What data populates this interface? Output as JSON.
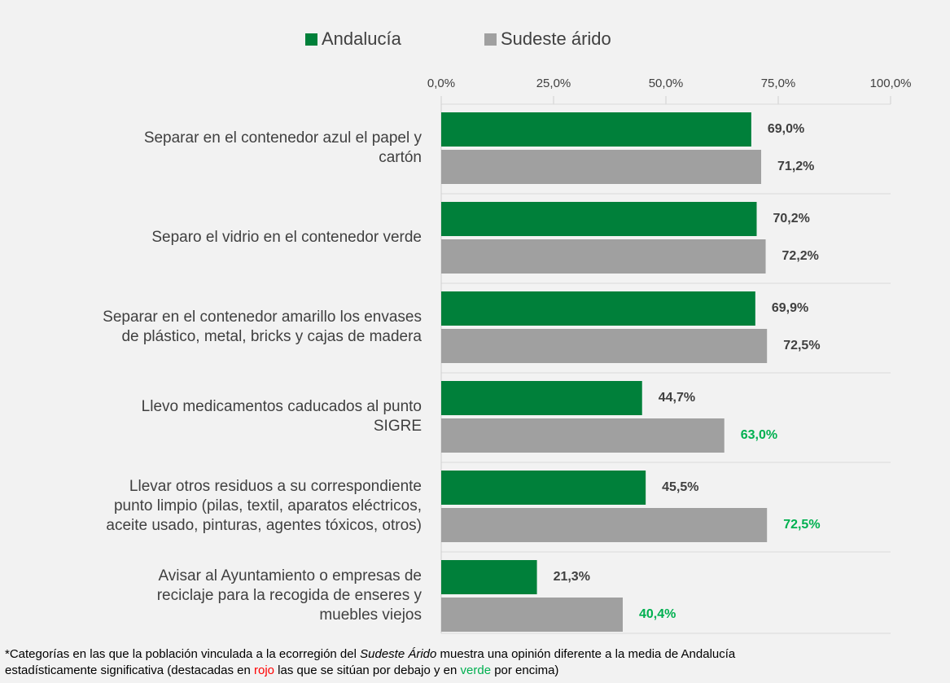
{
  "chart_data": {
    "type": "hbar",
    "categories": [
      [
        "Separar en el contenedor azul el papel y",
        "cartón"
      ],
      [
        "Separo el vidrio en el contenedor verde"
      ],
      [
        "Separar en el contenedor amarillo los envases",
        "de plástico, metal, bricks y cajas de madera"
      ],
      [
        "Llevo medicamentos caducados al punto",
        "SIGRE"
      ],
      [
        "Llevar otros residuos a su correspondiente",
        "punto limpio (pilas, textil, aparatos eléctricos,",
        "aceite usado, pinturas, agentes tóxicos, otros)"
      ],
      [
        "Avisar al Ayuntamiento o empresas de",
        "reciclaje para la recogida de enseres y",
        "muebles viejos"
      ]
    ],
    "series": [
      {
        "name": "Andalucía",
        "color": "#00803a",
        "values": [
          69.0,
          70.2,
          69.9,
          44.7,
          45.5,
          21.3
        ],
        "value_labels": [
          "69,0%",
          "70,2%",
          "69,9%",
          "44,7%",
          "45,5%",
          "21,3%"
        ],
        "value_label_colors": [
          "#404040",
          "#404040",
          "#404040",
          "#404040",
          "#404040",
          "#404040"
        ]
      },
      {
        "name": "Sudeste árido",
        "color": "#a0a0a0",
        "values": [
          71.2,
          72.2,
          72.5,
          63.0,
          72.5,
          40.4
        ],
        "value_labels": [
          "71,2%",
          "72,2%",
          "72,5%",
          "63,0%",
          "72,5%",
          "40,4%"
        ],
        "value_label_colors": [
          "#404040",
          "#404040",
          "#404040",
          "#00b050",
          "#00b050",
          "#00b050"
        ]
      }
    ],
    "xlim": [
      0,
      100
    ],
    "xticks": [
      {
        "value": 0,
        "label": "0,0%"
      },
      {
        "value": 25,
        "label": "25,0%"
      },
      {
        "value": 50,
        "label": "50,0%"
      },
      {
        "value": 75,
        "label": "75,0%"
      },
      {
        "value": 100,
        "label": "100,0%"
      }
    ],
    "legend": "top",
    "footnote": [
      [
        {
          "text": "*Categorías en las que la población vinculada a la ecorregión del "
        },
        {
          "text": "Sudeste Árido",
          "italic": true
        },
        {
          "text": " muestra una opinión diferente a la media de Andalucía"
        }
      ],
      [
        {
          "text": "estadísticamente significativa (destacadas en "
        },
        {
          "text": "rojo",
          "color": "#ff0000"
        },
        {
          "text": " las que se sitúan por debajo y en "
        },
        {
          "text": "verde",
          "color": "#00b050"
        },
        {
          "text": " por encima)"
        }
      ]
    ]
  }
}
